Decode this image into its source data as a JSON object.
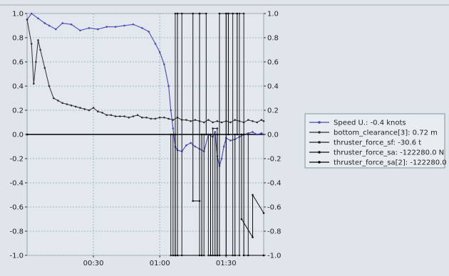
{
  "chart_data": {
    "type": "line",
    "title": "",
    "xlabel": "",
    "ylabel": "",
    "ylim": [
      -1.0,
      1.0
    ],
    "xlim": [
      "00:00",
      "01:47"
    ],
    "x_ticks": [
      "00:30",
      "01:00",
      "01:30"
    ],
    "y_ticks": [
      "1.0",
      "0.8",
      "0.6",
      "0.4",
      "0.2",
      "0.0",
      "-0.2",
      "-0.4",
      "-0.6",
      "-0.8",
      "-1.0"
    ],
    "grid": true,
    "legend_position": "right",
    "series": [
      {
        "name": "Speed U.: -0.4 knots",
        "color": "#4a4ab0",
        "marker": "dot",
        "x": [
          "00:00",
          "00:02",
          "00:05",
          "00:08",
          "00:10",
          "00:13",
          "00:16",
          "00:20",
          "00:24",
          "00:28",
          "00:32",
          "00:36",
          "00:40",
          "00:44",
          "00:48",
          "00:52",
          "00:55",
          "00:58",
          "01:00",
          "01:02",
          "01:04",
          "01:05",
          "01:06",
          "01:07",
          "01:08",
          "01:10",
          "01:12",
          "01:14",
          "01:16",
          "01:18",
          "01:20",
          "01:22",
          "01:24",
          "01:25",
          "01:26",
          "01:27",
          "01:28",
          "01:29",
          "01:30",
          "01:32",
          "01:34",
          "01:36",
          "01:38",
          "01:40",
          "01:42",
          "01:44",
          "01:46",
          "01:47"
        ],
        "y": [
          0.95,
          1.0,
          0.96,
          0.92,
          0.9,
          0.87,
          0.92,
          0.91,
          0.86,
          0.88,
          0.87,
          0.89,
          0.89,
          0.9,
          0.91,
          0.88,
          0.85,
          0.75,
          0.68,
          0.58,
          0.4,
          0.2,
          0.05,
          -0.1,
          -0.13,
          -0.14,
          -0.09,
          -0.07,
          -0.1,
          -0.12,
          -0.14,
          0.0,
          -0.02,
          0.02,
          -0.18,
          -0.26,
          -0.2,
          -0.1,
          -0.03,
          -0.05,
          -0.04,
          -0.02,
          0.0,
          0.01,
          0.02,
          0.0,
          0.01,
          0.0
        ]
      },
      {
        "name": "bottom_clearance[3]: 0.72 m",
        "color": "#303030",
        "marker": "dot",
        "x": [
          "00:00",
          "00:02",
          "00:03",
          "00:04",
          "00:05",
          "00:06",
          "00:08",
          "00:10",
          "00:12",
          "00:14",
          "00:16",
          "00:18",
          "00:20",
          "00:22",
          "00:24",
          "00:26",
          "00:28",
          "00:30",
          "00:32",
          "00:34",
          "00:36",
          "00:38",
          "00:40",
          "00:42",
          "00:44",
          "00:46",
          "00:48",
          "00:50",
          "00:52",
          "00:54",
          "00:56",
          "00:58",
          "01:00",
          "01:02",
          "01:04",
          "01:06",
          "01:08",
          "01:10",
          "01:12",
          "01:14",
          "01:16",
          "01:18",
          "01:20",
          "01:22",
          "01:24",
          "01:26",
          "01:28",
          "01:30",
          "01:32",
          "01:34",
          "01:36",
          "01:38",
          "01:40",
          "01:42",
          "01:44",
          "01:46",
          "01:47"
        ],
        "y": [
          0.95,
          0.75,
          0.42,
          0.6,
          0.78,
          0.7,
          0.55,
          0.4,
          0.3,
          0.28,
          0.26,
          0.25,
          0.24,
          0.23,
          0.22,
          0.21,
          0.2,
          0.22,
          0.19,
          0.18,
          0.16,
          0.16,
          0.15,
          0.15,
          0.15,
          0.14,
          0.15,
          0.16,
          0.14,
          0.14,
          0.13,
          0.13,
          0.14,
          0.14,
          0.13,
          0.12,
          0.14,
          0.12,
          0.12,
          0.11,
          0.12,
          0.11,
          0.1,
          0.12,
          0.1,
          0.11,
          0.1,
          0.11,
          0.1,
          0.12,
          0.11,
          0.1,
          0.12,
          0.11,
          0.1,
          0.12,
          0.11
        ]
      },
      {
        "name": "thruster_force_sf: -30.6 t",
        "color": "#202020",
        "marker": "dot",
        "x": [
          "00:00",
          "01:05",
          "01:05",
          "01:07",
          "01:07",
          "01:08",
          "01:08",
          "01:10",
          "01:10",
          "01:18",
          "01:18",
          "01:20",
          "01:20",
          "01:22",
          "01:22",
          "01:24",
          "01:24",
          "01:26",
          "01:26",
          "01:30",
          "01:30",
          "01:33",
          "01:33",
          "01:36",
          "01:36",
          "01:38",
          "01:38",
          "01:40",
          "01:40",
          "01:47"
        ],
        "y": [
          0.0,
          0.0,
          -1.0,
          -1.0,
          1.0,
          1.0,
          -1.0,
          -1.0,
          1.0,
          1.0,
          -1.0,
          -1.0,
          0.0,
          0.0,
          -1.0,
          -1.0,
          0.05,
          0.05,
          -1.0,
          -1.0,
          1.0,
          1.0,
          -1.0,
          -1.0,
          1.0,
          1.0,
          0.0,
          0.0,
          -1.0,
          -1.0
        ]
      },
      {
        "name": "thruster_force_sa: -122280.0 N",
        "color": "#101010",
        "marker": "dot",
        "x": [
          "00:00",
          "01:06",
          "01:06",
          "01:08",
          "01:08",
          "01:15",
          "01:15",
          "01:18",
          "01:18",
          "01:21",
          "01:21",
          "01:25",
          "01:25",
          "01:27",
          "01:27",
          "01:30",
          "01:30",
          "01:34",
          "01:34",
          "01:37",
          "01:37",
          "01:42",
          "01:42",
          "01:47"
        ],
        "y": [
          0.0,
          0.0,
          -1.0,
          -1.0,
          1.0,
          1.0,
          -0.55,
          -0.55,
          1.0,
          1.0,
          0.0,
          0.0,
          -1.0,
          -1.0,
          1.0,
          1.0,
          -1.0,
          -1.0,
          0.0,
          0.0,
          -0.7,
          -0.85,
          -0.5,
          -0.65
        ]
      },
      {
        "name": "thruster_force_sa[2]: -122280.0 N",
        "color": "#000000",
        "marker": "dot",
        "x": [
          "00:00",
          "01:07",
          "01:07",
          "01:19",
          "01:19",
          "01:23",
          "01:23",
          "01:26",
          "01:26",
          "01:31",
          "01:31",
          "01:35",
          "01:35",
          "01:38",
          "01:38",
          "01:47"
        ],
        "y": [
          0.0,
          0.0,
          -1.0,
          -1.0,
          0.0,
          0.0,
          -1.0,
          -1.0,
          0.0,
          0.0,
          1.0,
          1.0,
          0.0,
          0.0,
          -1.0,
          -1.0
        ]
      }
    ]
  }
}
